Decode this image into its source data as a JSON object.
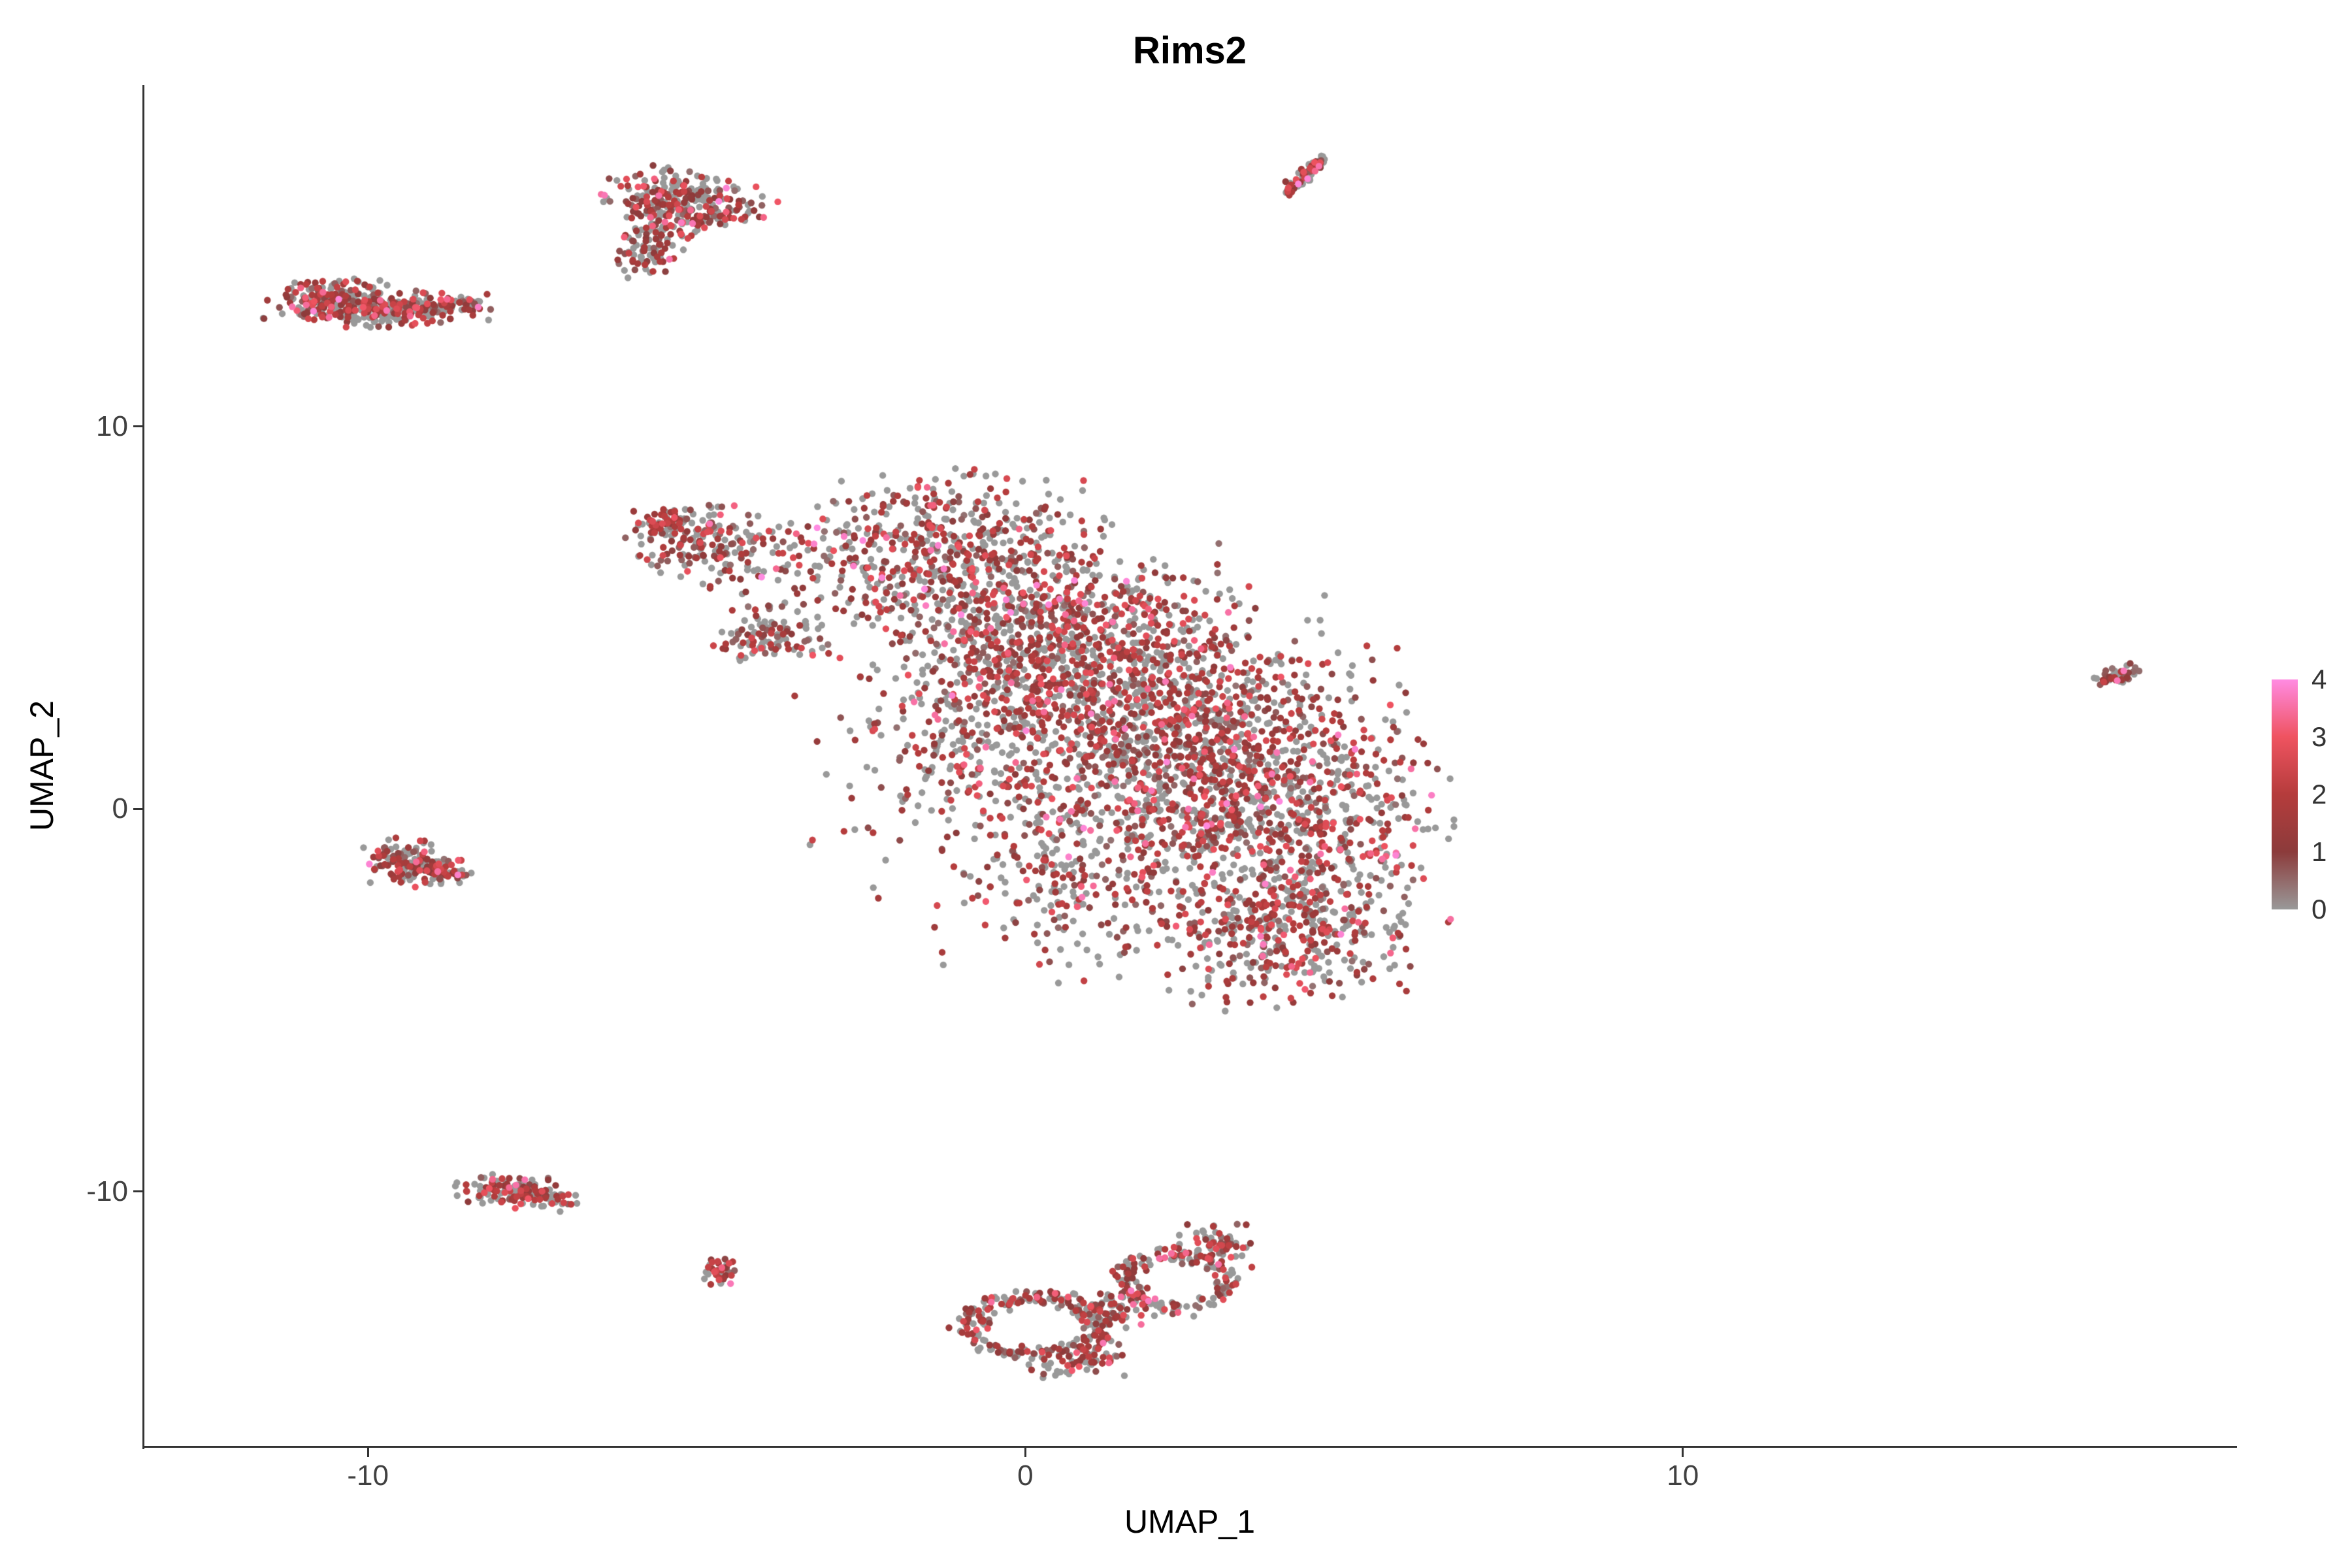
{
  "chart_data": {
    "type": "scatter",
    "title": "Rims2",
    "xlabel": "UMAP_1",
    "ylabel": "UMAP_2",
    "grid": false,
    "legend_position": "right",
    "x_domain": [
      -13.4,
      18.4
    ],
    "y_domain": [
      -16.65,
      18.9
    ],
    "x_ticks": [
      {
        "value": -10,
        "label": "-10"
      },
      {
        "value": 0,
        "label": "0"
      },
      {
        "value": 10,
        "label": "10"
      }
    ],
    "y_ticks": [
      {
        "value": 10,
        "label": "10"
      },
      {
        "value": 0,
        "label": "0"
      },
      {
        "value": -10,
        "label": "-10"
      }
    ],
    "legend": {
      "ticks": [
        {
          "value": 4,
          "label": "4"
        },
        {
          "value": 3,
          "label": "3"
        },
        {
          "value": 2,
          "label": "2"
        },
        {
          "value": 1,
          "label": "1"
        },
        {
          "value": 0,
          "label": "0"
        }
      ],
      "colors": [
        "#999999",
        "#8c3b3b",
        "#b53c3c",
        "#ef5360",
        "#ff8be2"
      ],
      "value_range": [
        0,
        4
      ]
    },
    "point": {
      "radius_px": 5.2
    },
    "value_levels": {
      "p_gray": 0.44,
      "bands": [
        {
          "min": 0.4,
          "max": 1.8,
          "p": 0.36
        },
        {
          "min": 1.8,
          "max": 2.8,
          "p": 0.15
        },
        {
          "min": 2.8,
          "max": 3.6,
          "p": 0.04
        },
        {
          "min": 3.6,
          "max": 4.0,
          "p": 0.01
        }
      ]
    },
    "seed": 42,
    "clusters": [
      {
        "name": "topleft-west",
        "type": "gauss",
        "cx": -10.45,
        "cy": 13.25,
        "sx": 0.5,
        "sy": 0.28,
        "rot": -4,
        "count": 230
      },
      {
        "name": "topleft-east",
        "type": "gauss",
        "cx": -9.35,
        "cy": 13.1,
        "sx": 0.55,
        "sy": 0.2,
        "rot": 4,
        "count": 170
      },
      {
        "name": "topleft-outlier",
        "type": "gauss",
        "cx": -8.4,
        "cy": 13.2,
        "sx": 0.15,
        "sy": 0.08,
        "rot": 0,
        "count": 10
      },
      {
        "name": "north-main",
        "type": "gauss",
        "cx": -5.15,
        "cy": 15.85,
        "sx": 0.58,
        "sy": 0.36,
        "rot": -18,
        "count": 260
      },
      {
        "name": "north-neck",
        "type": "gauss",
        "cx": -5.55,
        "cy": 15.15,
        "sx": 0.26,
        "sy": 0.26,
        "rot": 0,
        "count": 55
      },
      {
        "name": "north-tail",
        "type": "gauss",
        "cx": -5.8,
        "cy": 14.5,
        "sx": 0.2,
        "sy": 0.3,
        "rot": 12,
        "count": 55
      },
      {
        "name": "northeast-streak",
        "type": "line",
        "x1": 3.93,
        "y1": 16.05,
        "x2": 4.52,
        "y2": 17.0,
        "jitter": 0.055,
        "count": 85
      },
      {
        "name": "tip-far",
        "type": "gauss",
        "cx": -5.5,
        "cy": 7.5,
        "sx": 0.22,
        "sy": 0.17,
        "rot": 0,
        "count": 55
      },
      {
        "name": "tip",
        "type": "gauss",
        "cx": -4.75,
        "cy": 6.95,
        "sx": 0.55,
        "sy": 0.48,
        "rot": -30,
        "count": 170
      },
      {
        "name": "tip-scatter",
        "type": "gauss",
        "cx": -3.3,
        "cy": 6.2,
        "sx": 0.7,
        "sy": 0.85,
        "rot": 0,
        "count": 80
      },
      {
        "name": "arm",
        "type": "gauss",
        "cx": -3.85,
        "cy": 4.45,
        "sx": 0.42,
        "sy": 0.26,
        "rot": 15,
        "count": 95
      },
      {
        "name": "main-1",
        "type": "gauss",
        "cx": -1.2,
        "cy": 6.8,
        "sx": 1.05,
        "sy": 0.95,
        "rot": 0,
        "count": 420
      },
      {
        "name": "main-2",
        "type": "gauss",
        "cx": 0.3,
        "cy": 5.0,
        "sx": 1.3,
        "sy": 1.2,
        "rot": 0,
        "count": 620
      },
      {
        "name": "main-3",
        "type": "gauss",
        "cx": 1.5,
        "cy": 3.1,
        "sx": 1.5,
        "sy": 1.3,
        "rot": 0,
        "count": 800
      },
      {
        "name": "main-4",
        "type": "gauss",
        "cx": 2.8,
        "cy": 1.3,
        "sx": 1.5,
        "sy": 1.3,
        "rot": 0,
        "count": 800
      },
      {
        "name": "main-5",
        "type": "gauss",
        "cx": 3.8,
        "cy": -0.7,
        "sx": 1.2,
        "sy": 1.1,
        "rot": 0,
        "count": 500
      },
      {
        "name": "main-6",
        "type": "gauss",
        "cx": 4.0,
        "cy": -3.2,
        "sx": 0.9,
        "sy": 0.95,
        "rot": 0,
        "count": 420
      },
      {
        "name": "main-sparse-left",
        "type": "gauss",
        "cx": -0.9,
        "cy": 1.6,
        "sx": 1.15,
        "sy": 1.8,
        "rot": 0,
        "count": 280
      },
      {
        "name": "main-sparse-bottom",
        "type": "gauss",
        "cx": 0.8,
        "cy": -1.9,
        "sx": 1.0,
        "sy": 1.2,
        "rot": 0,
        "count": 240
      },
      {
        "name": "west-blob-a",
        "type": "gauss",
        "cx": -9.5,
        "cy": -1.35,
        "sx": 0.3,
        "sy": 0.26,
        "rot": 0,
        "count": 90
      },
      {
        "name": "west-blob-b",
        "type": "gauss",
        "cx": -9.0,
        "cy": -1.65,
        "sx": 0.28,
        "sy": 0.2,
        "rot": 0,
        "count": 75
      },
      {
        "name": "southwest",
        "type": "gauss",
        "cx": -7.7,
        "cy": -10.0,
        "sx": 0.45,
        "sy": 0.2,
        "rot": -8,
        "count": 150
      },
      {
        "name": "southwest-dot",
        "type": "gauss",
        "cx": -4.65,
        "cy": -12.1,
        "sx": 0.12,
        "sy": 0.17,
        "rot": 0,
        "count": 40
      },
      {
        "name": "south-ring-left",
        "type": "ring",
        "cx": 0.15,
        "cy": -13.5,
        "r": 1.0,
        "ryf": 0.75,
        "jitter": 0.13,
        "count": 210
      },
      {
        "name": "south-ring-right",
        "type": "ring",
        "cx": 2.3,
        "cy": -12.35,
        "r": 0.8,
        "ryf": 0.85,
        "jitter": 0.12,
        "count": 160
      },
      {
        "name": "south-bridge",
        "type": "gauss",
        "cx": 1.3,
        "cy": -13.15,
        "sx": 0.3,
        "sy": 0.24,
        "rot": 0,
        "count": 55
      },
      {
        "name": "south-bottom",
        "type": "gauss",
        "cx": 0.85,
        "cy": -14.5,
        "sx": 0.4,
        "sy": 0.2,
        "rot": 6,
        "count": 60
      },
      {
        "name": "south-right-top",
        "type": "gauss",
        "cx": 2.85,
        "cy": -11.4,
        "sx": 0.3,
        "sy": 0.3,
        "rot": 0,
        "count": 70
      },
      {
        "name": "far-east",
        "type": "gauss",
        "cx": 16.6,
        "cy": 3.5,
        "sx": 0.24,
        "sy": 0.1,
        "rot": 28,
        "count": 45
      }
    ]
  }
}
